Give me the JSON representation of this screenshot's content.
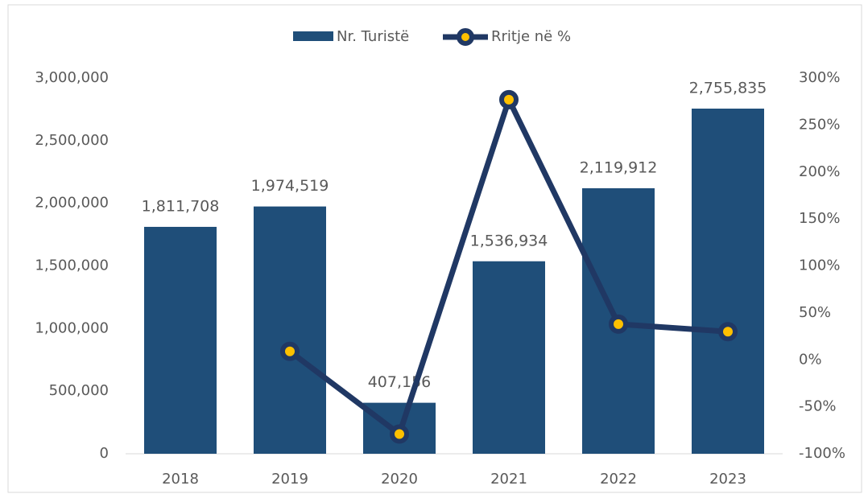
{
  "chart_data": {
    "type": "combo",
    "categories": [
      "2018",
      "2019",
      "2020",
      "2021",
      "2022",
      "2023"
    ],
    "series": [
      {
        "name": "Nr. Turistë",
        "color": "#1f4e79",
        "axis": "y",
        "values": [
          1811708,
          1974519,
          407156,
          1536934,
          2119912,
          2755835
        ],
        "value_labels": [
          "1,811,708",
          "1,974,519",
          "407,156",
          "1,536,934",
          "2,119,912",
          "2,755,835"
        ]
      },
      {
        "name": "Rritje në %",
        "color": "#203864",
        "marker_color": "#ffc000",
        "axis": "y2",
        "values": [
          null,
          9,
          -79,
          277,
          38,
          30
        ]
      }
    ],
    "ylim": [
      0,
      3000000
    ],
    "yticks": [
      0,
      {
        "value": 500000,
        "label": "500,000"
      },
      {
        "value": 1000000,
        "label": "1,000,000"
      },
      {
        "value": 1500000,
        "label": "1,500,000"
      },
      {
        "value": 2000000,
        "label": "2,000,000"
      },
      {
        "value": 2500000,
        "label": "2,500,000"
      },
      {
        "value": 3000000,
        "label": "3,000,000"
      }
    ],
    "y2lim": [
      -100,
      300
    ],
    "y2ticks": [
      {
        "value": -100,
        "label": "-100%"
      },
      {
        "value": -50,
        "label": "-50%"
      },
      {
        "value": 0,
        "label": "0%"
      },
      {
        "value": 50,
        "label": "50%"
      },
      {
        "value": 100,
        "label": "100%"
      },
      {
        "value": 150,
        "label": "150%"
      },
      {
        "value": 200,
        "label": "200%"
      },
      {
        "value": 250,
        "label": "250%"
      },
      {
        "value": 300,
        "label": "300%"
      }
    ],
    "legend": "top",
    "grid": false
  }
}
